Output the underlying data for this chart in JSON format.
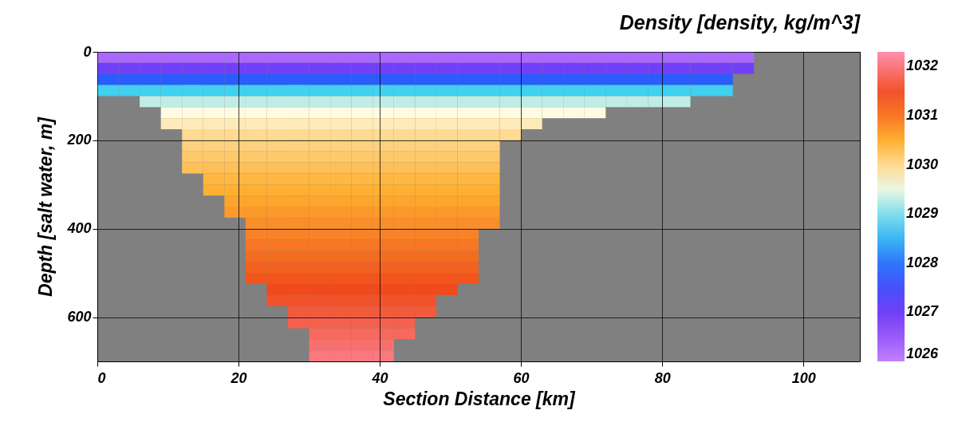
{
  "chart_data": {
    "type": "heatmap",
    "clabel": "Density [density, kg/m^3]",
    "xlabel": "Section Distance [km]",
    "ylabel": "Depth [salt water, m]",
    "x": [
      1.5,
      4.5,
      7.5,
      10.5,
      13.5,
      16.5,
      19.5,
      22.5,
      25.5,
      28.5,
      31.5,
      34.5,
      37.5,
      40.5,
      43.5,
      46.5,
      49.5,
      52.5,
      55.5,
      58.5,
      61.5,
      64.5,
      67.5,
      70.5,
      73.5,
      76.5,
      79.5,
      82.5,
      85.5,
      88.5,
      91.5,
      94.5,
      97.5,
      100.5,
      103.5,
      106.5
    ],
    "xlim": [
      0,
      108
    ],
    "xticks": [
      0,
      20,
      40,
      60,
      80,
      100
    ],
    "ylim": [
      700,
      0
    ],
    "yticks": [
      0,
      200,
      400,
      600
    ],
    "clim": [
      1026,
      1032.3
    ],
    "cticks": [
      1026,
      1027,
      1028,
      1029,
      1030,
      1031,
      1032
    ],
    "grid": true,
    "cells": [
      [
        1026.3,
        1026.3,
        1026.3,
        1026.3,
        1026.3,
        1026.3,
        1026.3,
        1026.3,
        1026.3,
        1026.3,
        1026.3,
        1026.3,
        1026.3,
        1026.3,
        1026.3,
        1026.3,
        1026.3,
        1026.3,
        1026.3,
        1026.3,
        1026.3,
        1026.3,
        1026.3,
        1026.3,
        1026.3,
        1026.3,
        1026.3,
        1026.3,
        1026.3,
        1026.3,
        1026.3,
        null,
        null,
        null,
        null,
        null
      ],
      [
        1027.0,
        1027.0,
        1027.0,
        1027.0,
        1027.0,
        1027.0,
        1027.0,
        1027.0,
        1027.0,
        1027.0,
        1027.0,
        1027.0,
        1027.0,
        1027.0,
        1027.0,
        1027.0,
        1027.0,
        1027.0,
        1027.0,
        1027.0,
        1027.0,
        1027.0,
        1027.0,
        1027.0,
        1027.0,
        1027.0,
        1027.0,
        1027.0,
        1027.0,
        1027.0,
        1027.0,
        null,
        null,
        null,
        null,
        null
      ],
      [
        1027.8,
        1027.8,
        1027.8,
        1027.8,
        1027.8,
        1027.8,
        1027.8,
        1027.8,
        1027.8,
        1027.8,
        1027.8,
        1027.8,
        1027.8,
        1027.8,
        1027.8,
        1027.8,
        1027.8,
        1027.8,
        1027.8,
        1027.8,
        1027.8,
        1027.8,
        1027.8,
        1027.8,
        1027.8,
        1027.8,
        1027.8,
        1027.8,
        1027.8,
        1027.8,
        null,
        null,
        null,
        null,
        null,
        null
      ],
      [
        1028.7,
        1028.7,
        1028.7,
        1028.7,
        1028.7,
        1028.7,
        1028.7,
        1028.7,
        1028.7,
        1028.7,
        1028.7,
        1028.7,
        1028.7,
        1028.7,
        1028.7,
        1028.7,
        1028.7,
        1028.7,
        1028.7,
        1028.7,
        1028.7,
        1028.7,
        1028.7,
        1028.7,
        1028.7,
        1028.7,
        1028.7,
        1028.7,
        1028.7,
        1028.7,
        null,
        null,
        null,
        null,
        null,
        null
      ],
      [
        null,
        null,
        1029.3,
        1029.3,
        1029.3,
        1029.3,
        1029.3,
        1029.3,
        1029.3,
        1029.3,
        1029.3,
        1029.3,
        1029.3,
        1029.3,
        1029.3,
        1029.3,
        1029.3,
        1029.3,
        1029.3,
        1029.3,
        1029.3,
        1029.3,
        1029.3,
        1029.3,
        1029.3,
        1029.3,
        1029.3,
        1029.3,
        null,
        null,
        null,
        null,
        null,
        null,
        null,
        null
      ],
      [
        null,
        null,
        null,
        1029.6,
        1029.6,
        1029.6,
        1029.6,
        1029.6,
        1029.6,
        1029.6,
        1029.6,
        1029.6,
        1029.6,
        1029.6,
        1029.6,
        1029.6,
        1029.6,
        1029.6,
        1029.6,
        1029.6,
        1029.6,
        1029.6,
        1029.6,
        1029.6,
        null,
        null,
        null,
        null,
        null,
        null,
        null,
        null,
        null,
        null,
        null,
        null
      ],
      [
        null,
        null,
        null,
        1029.8,
        1029.8,
        1029.8,
        1029.8,
        1029.8,
        1029.8,
        1029.8,
        1029.8,
        1029.8,
        1029.8,
        1029.8,
        1029.8,
        1029.8,
        1029.8,
        1029.8,
        1029.8,
        1029.8,
        1029.8,
        null,
        null,
        null,
        null,
        null,
        null,
        null,
        null,
        null,
        null,
        null,
        null,
        null,
        null,
        null
      ],
      [
        null,
        null,
        null,
        null,
        1030.0,
        1030.0,
        1030.0,
        1030.0,
        1030.0,
        1030.0,
        1030.0,
        1030.0,
        1030.0,
        1030.0,
        1030.0,
        1030.0,
        1030.0,
        1030.0,
        1030.0,
        1030.0,
        null,
        null,
        null,
        null,
        null,
        null,
        null,
        null,
        null,
        null,
        null,
        null,
        null,
        null,
        null,
        null
      ],
      [
        null,
        null,
        null,
        null,
        1030.1,
        1030.1,
        1030.1,
        1030.1,
        1030.1,
        1030.1,
        1030.1,
        1030.1,
        1030.1,
        1030.1,
        1030.1,
        1030.1,
        1030.1,
        1030.1,
        1030.1,
        null,
        null,
        null,
        null,
        null,
        null,
        null,
        null,
        null,
        null,
        null,
        null,
        null,
        null,
        null,
        null,
        null
      ],
      [
        null,
        null,
        null,
        null,
        1030.2,
        1030.2,
        1030.2,
        1030.2,
        1030.2,
        1030.2,
        1030.2,
        1030.2,
        1030.2,
        1030.2,
        1030.2,
        1030.2,
        1030.2,
        1030.2,
        1030.2,
        null,
        null,
        null,
        null,
        null,
        null,
        null,
        null,
        null,
        null,
        null,
        null,
        null,
        null,
        null,
        null,
        null
      ],
      [
        null,
        null,
        null,
        null,
        1030.3,
        1030.3,
        1030.3,
        1030.3,
        1030.3,
        1030.3,
        1030.3,
        1030.3,
        1030.3,
        1030.3,
        1030.3,
        1030.3,
        1030.3,
        1030.3,
        1030.3,
        null,
        null,
        null,
        null,
        null,
        null,
        null,
        null,
        null,
        null,
        null,
        null,
        null,
        null,
        null,
        null,
        null
      ],
      [
        null,
        null,
        null,
        null,
        null,
        1030.4,
        1030.4,
        1030.4,
        1030.4,
        1030.4,
        1030.4,
        1030.4,
        1030.4,
        1030.4,
        1030.4,
        1030.4,
        1030.4,
        1030.4,
        1030.4,
        null,
        null,
        null,
        null,
        null,
        null,
        null,
        null,
        null,
        null,
        null,
        null,
        null,
        null,
        null,
        null,
        null
      ],
      [
        null,
        null,
        null,
        null,
        null,
        1030.5,
        1030.5,
        1030.5,
        1030.5,
        1030.5,
        1030.5,
        1030.5,
        1030.5,
        1030.5,
        1030.5,
        1030.5,
        1030.5,
        1030.5,
        1030.5,
        null,
        null,
        null,
        null,
        null,
        null,
        null,
        null,
        null,
        null,
        null,
        null,
        null,
        null,
        null,
        null,
        null
      ],
      [
        null,
        null,
        null,
        null,
        null,
        null,
        1030.6,
        1030.6,
        1030.6,
        1030.6,
        1030.6,
        1030.6,
        1030.6,
        1030.6,
        1030.6,
        1030.6,
        1030.6,
        1030.6,
        1030.6,
        null,
        null,
        null,
        null,
        null,
        null,
        null,
        null,
        null,
        null,
        null,
        null,
        null,
        null,
        null,
        null,
        null
      ],
      [
        null,
        null,
        null,
        null,
        null,
        null,
        1030.7,
        1030.7,
        1030.7,
        1030.7,
        1030.7,
        1030.7,
        1030.7,
        1030.7,
        1030.7,
        1030.7,
        1030.7,
        1030.7,
        1030.7,
        null,
        null,
        null,
        null,
        null,
        null,
        null,
        null,
        null,
        null,
        null,
        null,
        null,
        null,
        null,
        null,
        null
      ],
      [
        null,
        null,
        null,
        null,
        null,
        null,
        null,
        1030.8,
        1030.8,
        1030.8,
        1030.8,
        1030.8,
        1030.8,
        1030.8,
        1030.8,
        1030.8,
        1030.8,
        1030.8,
        1030.8,
        null,
        null,
        null,
        null,
        null,
        null,
        null,
        null,
        null,
        null,
        null,
        null,
        null,
        null,
        null,
        null,
        null
      ],
      [
        null,
        null,
        null,
        null,
        null,
        null,
        null,
        1030.9,
        1030.9,
        1030.9,
        1030.9,
        1030.9,
        1030.9,
        1030.9,
        1030.9,
        1030.9,
        1030.9,
        1030.9,
        null,
        null,
        null,
        null,
        null,
        null,
        null,
        null,
        null,
        null,
        null,
        null,
        null,
        null,
        null,
        null,
        null,
        null
      ],
      [
        null,
        null,
        null,
        null,
        null,
        null,
        null,
        1031.0,
        1031.0,
        1031.0,
        1031.0,
        1031.0,
        1031.0,
        1031.0,
        1031.0,
        1031.0,
        1031.0,
        1031.0,
        null,
        null,
        null,
        null,
        null,
        null,
        null,
        null,
        null,
        null,
        null,
        null,
        null,
        null,
        null,
        null,
        null,
        null
      ],
      [
        null,
        null,
        null,
        null,
        null,
        null,
        null,
        1031.1,
        1031.1,
        1031.1,
        1031.1,
        1031.1,
        1031.1,
        1031.1,
        1031.1,
        1031.1,
        1031.1,
        1031.1,
        null,
        null,
        null,
        null,
        null,
        null,
        null,
        null,
        null,
        null,
        null,
        null,
        null,
        null,
        null,
        null,
        null,
        null
      ],
      [
        null,
        null,
        null,
        null,
        null,
        null,
        null,
        1031.2,
        1031.2,
        1031.2,
        1031.2,
        1031.2,
        1031.2,
        1031.2,
        1031.2,
        1031.2,
        1031.2,
        1031.2,
        null,
        null,
        null,
        null,
        null,
        null,
        null,
        null,
        null,
        null,
        null,
        null,
        null,
        null,
        null,
        null,
        null,
        null
      ],
      [
        null,
        null,
        null,
        null,
        null,
        null,
        null,
        1031.3,
        1031.3,
        1031.3,
        1031.3,
        1031.3,
        1031.3,
        1031.3,
        1031.3,
        1031.3,
        1031.3,
        1031.3,
        null,
        null,
        null,
        null,
        null,
        null,
        null,
        null,
        null,
        null,
        null,
        null,
        null,
        null,
        null,
        null,
        null,
        null
      ],
      [
        null,
        null,
        null,
        null,
        null,
        null,
        null,
        null,
        1031.4,
        1031.4,
        1031.4,
        1031.4,
        1031.4,
        1031.4,
        1031.4,
        1031.4,
        1031.4,
        null,
        null,
        null,
        null,
        null,
        null,
        null,
        null,
        null,
        null,
        null,
        null,
        null,
        null,
        null,
        null,
        null,
        null,
        null
      ],
      [
        null,
        null,
        null,
        null,
        null,
        null,
        null,
        null,
        1031.5,
        1031.5,
        1031.5,
        1031.5,
        1031.5,
        1031.5,
        1031.5,
        1031.5,
        null,
        null,
        null,
        null,
        null,
        null,
        null,
        null,
        null,
        null,
        null,
        null,
        null,
        null,
        null,
        null,
        null,
        null,
        null,
        null
      ],
      [
        null,
        null,
        null,
        null,
        null,
        null,
        null,
        null,
        null,
        1031.6,
        1031.6,
        1031.6,
        1031.6,
        1031.6,
        1031.6,
        1031.6,
        null,
        null,
        null,
        null,
        null,
        null,
        null,
        null,
        null,
        null,
        null,
        null,
        null,
        null,
        null,
        null,
        null,
        null,
        null,
        null
      ],
      [
        null,
        null,
        null,
        null,
        null,
        null,
        null,
        null,
        null,
        1031.7,
        1031.7,
        1031.7,
        1031.7,
        1031.7,
        1031.7,
        null,
        null,
        null,
        null,
        null,
        null,
        null,
        null,
        null,
        null,
        null,
        null,
        null,
        null,
        null,
        null,
        null,
        null,
        null,
        null,
        null
      ],
      [
        null,
        null,
        null,
        null,
        null,
        null,
        null,
        null,
        null,
        null,
        1031.8,
        1031.8,
        1031.8,
        1031.8,
        1031.8,
        null,
        null,
        null,
        null,
        null,
        null,
        null,
        null,
        null,
        null,
        null,
        null,
        null,
        null,
        null,
        null,
        null,
        null,
        null,
        null,
        null
      ],
      [
        null,
        null,
        null,
        null,
        null,
        null,
        null,
        null,
        null,
        null,
        1031.9,
        1031.9,
        1031.9,
        1031.9,
        null,
        null,
        null,
        null,
        null,
        null,
        null,
        null,
        null,
        null,
        null,
        null,
        null,
        null,
        null,
        null,
        null,
        null,
        null,
        null,
        null,
        null
      ],
      [
        null,
        null,
        null,
        null,
        null,
        null,
        null,
        null,
        null,
        null,
        1032.0,
        1032.0,
        1032.0,
        1032.0,
        null,
        null,
        null,
        null,
        null,
        null,
        null,
        null,
        null,
        null,
        null,
        null,
        null,
        null,
        null,
        null,
        null,
        null,
        null,
        null,
        null,
        null
      ]
    ]
  }
}
